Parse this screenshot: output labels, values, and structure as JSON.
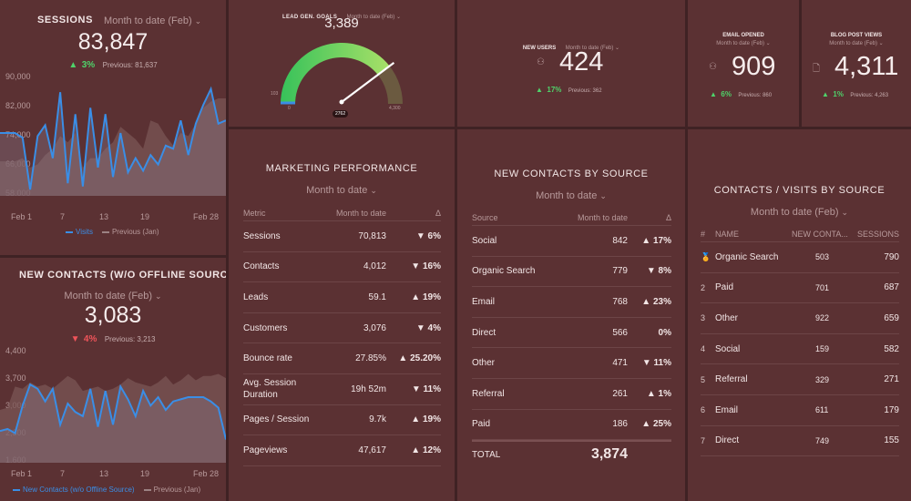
{
  "colors": {
    "bg": "#3f2224",
    "panel": "#5b3133",
    "accent_blue": "#3a8ee6",
    "up": "#4fd36a",
    "down": "#f0545a"
  },
  "sessions": {
    "title": "SESSIONS",
    "period": "Month to date (Feb)",
    "value": "83,847",
    "change": "3%",
    "change_dir": "up",
    "previous": "Previous: 81,637",
    "legend": {
      "current": "Visits",
      "previous": "Previous (Jan)"
    },
    "chart_data": {
      "type": "line",
      "x_labels": [
        "Feb 1",
        "7",
        "13",
        "19",
        "Feb 28"
      ],
      "y_ticks": [
        "90,000",
        "82,000",
        "74,000",
        "66,000",
        "58,000"
      ],
      "ylim": [
        55000,
        95000
      ],
      "series": [
        {
          "name": "Visits",
          "values": [
            75000,
            75000,
            75000,
            73500,
            57000,
            74000,
            77500,
            67000,
            88000,
            59000,
            81000,
            58000,
            83000,
            64000,
            81000,
            61000,
            75000,
            62500,
            67000,
            63000,
            68000,
            65000,
            71000,
            70000,
            79000,
            68000,
            78000,
            84000,
            89000,
            78000,
            79000
          ]
        },
        {
          "name": "Previous (Jan)",
          "values": [
            66000,
            66000,
            66000,
            67000,
            64000,
            65000,
            68000,
            70000,
            74000,
            72000,
            75000,
            64000,
            67000,
            67000,
            70000,
            72000,
            77000,
            75000,
            73000,
            70000,
            79000,
            78000,
            74000,
            71000,
            75000,
            74000,
            78000,
            83000,
            85000,
            86000,
            86000
          ]
        }
      ]
    }
  },
  "new_contacts_chart": {
    "title": "NEW CONTACTS (W/O OFFLINE SOURC...",
    "period": "Month to date (Feb)",
    "value": "3,083",
    "change": "4%",
    "change_dir": "down",
    "previous": "Previous: 3,213",
    "legend": {
      "current": "New Contacts (w/o Offline Source)",
      "previous": "Previous (Jan)"
    },
    "chart_data": {
      "type": "line",
      "x_labels": [
        "Feb 1",
        "7",
        "13",
        "19",
        "Feb 28"
      ],
      "y_ticks": [
        "4,400",
        "3,700",
        "3,000",
        "2,300",
        "1,600"
      ],
      "ylim": [
        1600,
        4400
      ],
      "series": [
        {
          "name": "New Contacts (w/o Offline Source)",
          "values": [
            2350,
            2400,
            2300,
            2950,
            3450,
            3350,
            3050,
            3350,
            2500,
            3000,
            2800,
            2700,
            3350,
            2450,
            3300,
            2500,
            3400,
            3100,
            2700,
            3300,
            2950,
            3150,
            2850,
            3050,
            3100,
            3150,
            3150,
            3150,
            3050,
            2900,
            2150
          ]
        },
        {
          "name": "Previous (Jan)",
          "values": [
            2850,
            2900,
            3400,
            3350,
            3500,
            3400,
            3450,
            3350,
            3500,
            3650,
            3550,
            3300,
            3350,
            3400,
            3300,
            3350,
            3450,
            3600,
            3500,
            3450,
            3400,
            3500,
            3650,
            3450,
            3550,
            3700,
            3550,
            3650,
            3650,
            3700,
            3600
          ]
        }
      ]
    }
  },
  "lead_gen": {
    "title": "LEAD GEN. GOALS",
    "period": "Month to date (Feb)",
    "value": "3,389",
    "gauge_min_label": "0",
    "gauge_max_label": "4,300",
    "gauge_left_label": "103",
    "gauge_needle_label": "2762",
    "chart_data": {
      "type": "gauge",
      "min": 0,
      "max": 4300,
      "value": 3389,
      "target": 2762
    }
  },
  "new_users": {
    "title": "NEW USERS",
    "period": "Month to date (Feb)",
    "value": "424",
    "change": "17%",
    "change_dir": "up",
    "previous": "Previous: 362"
  },
  "email_opened": {
    "title": "EMAIL OPENED",
    "period": "Month to date (Feb)",
    "value": "909",
    "change": "6%",
    "change_dir": "up",
    "previous": "Previous: 860"
  },
  "blog_views": {
    "title": "BLOG POST VIEWS",
    "period": "Month to date (Feb)",
    "value": "4,311",
    "change": "1%",
    "change_dir": "up",
    "previous": "Previous: 4,263"
  },
  "marketing": {
    "title": "MARKETING PERFORMANCE",
    "period": "Month to date",
    "columns": [
      "Metric",
      "Month to date",
      "Δ"
    ],
    "rows": [
      {
        "metric": "Sessions",
        "value": "70,813",
        "delta": "6%",
        "dir": "down"
      },
      {
        "metric": "Contacts",
        "value": "4,012",
        "delta": "16%",
        "dir": "down"
      },
      {
        "metric": "Leads",
        "value": "59.1",
        "delta": "19%",
        "dir": "up"
      },
      {
        "metric": "Customers",
        "value": "3,076",
        "delta": "4%",
        "dir": "down"
      },
      {
        "metric": "Bounce rate",
        "value": "27.85%",
        "delta": "25.20%",
        "dir": "up"
      },
      {
        "metric": "Avg. Session Duration",
        "value": "19h 52m",
        "delta": "11%",
        "dir": "down"
      },
      {
        "metric": "Pages / Session",
        "value": "9.7k",
        "delta": "19%",
        "dir": "up"
      },
      {
        "metric": "Pageviews",
        "value": "47,617",
        "delta": "12%",
        "dir": "up"
      }
    ]
  },
  "contacts_by_source": {
    "title": "NEW CONTACTS BY SOURCE",
    "period": "Month to date",
    "columns": [
      "Source",
      "Month to date",
      "Δ"
    ],
    "rows": [
      {
        "source": "Social",
        "value": "842",
        "delta": "17%",
        "dir": "up"
      },
      {
        "source": "Organic Search",
        "value": "779",
        "delta": "8%",
        "dir": "down"
      },
      {
        "source": "Email",
        "value": "768",
        "delta": "23%",
        "dir": "up"
      },
      {
        "source": "Direct",
        "value": "566",
        "delta": "0%",
        "dir": "none"
      },
      {
        "source": "Other",
        "value": "471",
        "delta": "11%",
        "dir": "down"
      },
      {
        "source": "Referral",
        "value": "261",
        "delta": "1%",
        "dir": "up"
      },
      {
        "source": "Paid",
        "value": "186",
        "delta": "25%",
        "dir": "up"
      }
    ],
    "total_label": "TOTAL",
    "total_value": "3,874"
  },
  "contacts_visits": {
    "title": "CONTACTS / VISITS BY SOURCE",
    "period": "Month to date (Feb)",
    "columns": [
      "#",
      "NAME",
      "NEW CONTA...",
      "SESSIONS"
    ],
    "rows": [
      {
        "rank": "🏅",
        "name": "Organic Search",
        "contacts": "503",
        "sessions": "790"
      },
      {
        "rank": "2",
        "name": "Paid",
        "contacts": "701",
        "sessions": "687"
      },
      {
        "rank": "3",
        "name": "Other",
        "contacts": "922",
        "sessions": "659"
      },
      {
        "rank": "4",
        "name": "Social",
        "contacts": "159",
        "sessions": "582"
      },
      {
        "rank": "5",
        "name": "Referral",
        "contacts": "329",
        "sessions": "271"
      },
      {
        "rank": "6",
        "name": "Email",
        "contacts": "611",
        "sessions": "179"
      },
      {
        "rank": "7",
        "name": "Direct",
        "contacts": "749",
        "sessions": "155"
      }
    ]
  }
}
